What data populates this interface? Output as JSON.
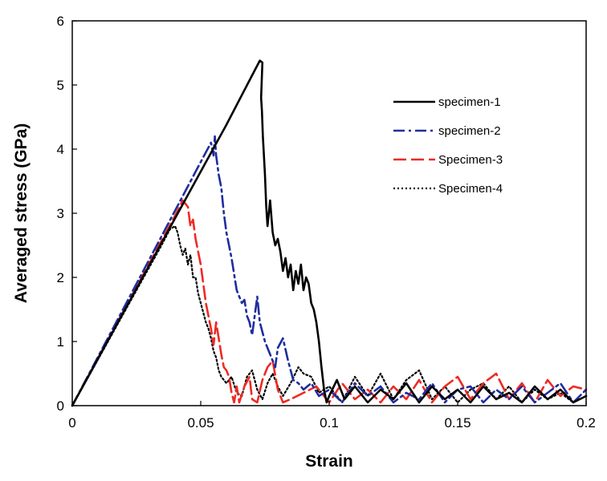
{
  "chart_data": {
    "type": "line",
    "title": "",
    "xlabel": "Strain",
    "ylabel": "Averaged stress (GPa)",
    "xlim": [
      0,
      0.2
    ],
    "ylim": [
      0,
      6
    ],
    "xticks": [
      0,
      0.05,
      0.1,
      0.15,
      0.2
    ],
    "xtick_labels": [
      "0",
      "0.05",
      "0.1",
      "0.15",
      "0.2"
    ],
    "yticks": [
      0,
      1,
      2,
      3,
      4,
      5,
      6
    ],
    "ytick_labels": [
      "0",
      "1",
      "2",
      "3",
      "4",
      "5",
      "6"
    ],
    "grid": false,
    "legend_position": "top-right",
    "series": [
      {
        "name": "specimen-1",
        "color": "#000000",
        "style": "solid",
        "x": [
          0,
          0.01,
          0.02,
          0.03,
          0.04,
          0.05,
          0.06,
          0.07,
          0.073,
          0.074,
          0.0735,
          0.0738,
          0.0742,
          0.075,
          0.0755,
          0.076,
          0.077,
          0.078,
          0.079,
          0.08,
          0.081,
          0.082,
          0.083,
          0.084,
          0.085,
          0.086,
          0.087,
          0.088,
          0.089,
          0.09,
          0.091,
          0.092,
          0.093,
          0.094,
          0.095,
          0.096,
          0.097,
          0.098,
          0.099,
          0.1,
          0.103,
          0.106,
          0.11,
          0.115,
          0.12,
          0.125,
          0.13,
          0.135,
          0.14,
          0.145,
          0.15,
          0.155,
          0.16,
          0.165,
          0.17,
          0.175,
          0.18,
          0.185,
          0.19,
          0.195,
          0.2
        ],
        "y": [
          0,
          0.73,
          1.46,
          2.19,
          2.92,
          3.65,
          4.38,
          5.15,
          5.38,
          5.35,
          4.8,
          4.6,
          4.2,
          3.6,
          3.1,
          2.8,
          3.2,
          2.7,
          2.5,
          2.6,
          2.4,
          2.1,
          2.3,
          2.0,
          2.2,
          1.8,
          2.1,
          1.9,
          2.2,
          1.8,
          2.0,
          1.9,
          1.6,
          1.5,
          1.3,
          1.0,
          0.6,
          0.25,
          0.05,
          0.15,
          0.4,
          0.1,
          0.3,
          0.05,
          0.25,
          0.1,
          0.35,
          0.05,
          0.3,
          0.1,
          0.25,
          0.05,
          0.3,
          0.1,
          0.2,
          0.05,
          0.3,
          0.1,
          0.25,
          0.05,
          0.15
        ]
      },
      {
        "name": "specimen-2",
        "color": "#1f2d9e",
        "style": "dashdot",
        "x": [
          0,
          0.01,
          0.02,
          0.03,
          0.04,
          0.05,
          0.054,
          0.055,
          0.0555,
          0.056,
          0.057,
          0.058,
          0.059,
          0.06,
          0.062,
          0.064,
          0.066,
          0.067,
          0.068,
          0.069,
          0.07,
          0.071,
          0.072,
          0.073,
          0.075,
          0.077,
          0.079,
          0.08,
          0.082,
          0.084,
          0.086,
          0.088,
          0.09,
          0.093,
          0.096,
          0.1,
          0.105,
          0.11,
          0.115,
          0.12,
          0.125,
          0.13,
          0.135,
          0.14,
          0.145,
          0.15,
          0.155,
          0.16,
          0.165,
          0.17,
          0.175,
          0.18,
          0.185,
          0.19,
          0.195,
          0.2
        ],
        "y": [
          0,
          0.76,
          1.52,
          2.28,
          3.04,
          3.8,
          4.1,
          3.9,
          4.2,
          3.9,
          3.6,
          3.4,
          3.0,
          2.7,
          2.3,
          1.8,
          1.6,
          1.65,
          1.4,
          1.3,
          1.1,
          1.4,
          1.7,
          1.3,
          1.0,
          0.8,
          0.6,
          0.9,
          1.05,
          0.7,
          0.4,
          0.35,
          0.25,
          0.35,
          0.15,
          0.25,
          0.05,
          0.35,
          0.15,
          0.3,
          0.05,
          0.2,
          0.1,
          0.35,
          0.05,
          0.25,
          0.3,
          0.05,
          0.25,
          0.1,
          0.3,
          0.05,
          0.2,
          0.35,
          0.05,
          0.25
        ]
      },
      {
        "name": "Specimen-3",
        "color": "#ee2a24",
        "style": "longdash",
        "x": [
          0,
          0.01,
          0.02,
          0.03,
          0.04,
          0.043,
          0.045,
          0.046,
          0.047,
          0.048,
          0.049,
          0.05,
          0.051,
          0.052,
          0.053,
          0.054,
          0.055,
          0.056,
          0.057,
          0.058,
          0.059,
          0.06,
          0.061,
          0.062,
          0.063,
          0.064,
          0.065,
          0.067,
          0.069,
          0.07,
          0.072,
          0.074,
          0.076,
          0.078,
          0.08,
          0.082,
          0.085,
          0.09,
          0.095,
          0.1,
          0.105,
          0.11,
          0.115,
          0.12,
          0.125,
          0.13,
          0.135,
          0.14,
          0.145,
          0.15,
          0.155,
          0.16,
          0.165,
          0.17,
          0.175,
          0.18,
          0.185,
          0.19,
          0.195,
          0.2
        ],
        "y": [
          0,
          0.74,
          1.48,
          2.22,
          2.96,
          3.2,
          3.1,
          2.8,
          2.9,
          2.6,
          2.4,
          2.2,
          1.9,
          1.6,
          1.4,
          1.2,
          0.95,
          1.3,
          1.05,
          0.8,
          0.6,
          0.55,
          0.45,
          0.2,
          0.05,
          0.3,
          0.05,
          0.3,
          0.45,
          0.1,
          0.05,
          0.4,
          0.6,
          0.7,
          0.25,
          0.05,
          0.1,
          0.2,
          0.3,
          0.05,
          0.35,
          0.1,
          0.25,
          0.05,
          0.3,
          0.1,
          0.4,
          0.05,
          0.3,
          0.45,
          0.1,
          0.35,
          0.5,
          0.1,
          0.35,
          0.05,
          0.4,
          0.15,
          0.3,
          0.25
        ]
      },
      {
        "name": "Specimen-4",
        "color": "#000000",
        "style": "dotted",
        "x": [
          0,
          0.01,
          0.02,
          0.03,
          0.035,
          0.038,
          0.04,
          0.041,
          0.042,
          0.043,
          0.044,
          0.045,
          0.046,
          0.047,
          0.048,
          0.049,
          0.05,
          0.051,
          0.052,
          0.053,
          0.054,
          0.055,
          0.056,
          0.057,
          0.058,
          0.06,
          0.062,
          0.064,
          0.066,
          0.068,
          0.07,
          0.072,
          0.074,
          0.076,
          0.078,
          0.08,
          0.082,
          0.085,
          0.088,
          0.09,
          0.093,
          0.096,
          0.1,
          0.105,
          0.11,
          0.115,
          0.12,
          0.125,
          0.13,
          0.135,
          0.14,
          0.145,
          0.15,
          0.155,
          0.16,
          0.165,
          0.17,
          0.175,
          0.18,
          0.185,
          0.19,
          0.195,
          0.2
        ],
        "y": [
          0,
          0.72,
          1.44,
          2.16,
          2.52,
          2.75,
          2.8,
          2.7,
          2.5,
          2.35,
          2.45,
          2.2,
          2.35,
          2.0,
          2.0,
          1.75,
          1.6,
          1.45,
          1.3,
          1.2,
          1.05,
          0.85,
          0.75,
          0.55,
          0.45,
          0.35,
          0.45,
          0.2,
          0.15,
          0.45,
          0.55,
          0.25,
          0.1,
          0.35,
          0.5,
          0.3,
          0.15,
          0.35,
          0.6,
          0.5,
          0.45,
          0.2,
          0.3,
          0.05,
          0.45,
          0.15,
          0.5,
          0.1,
          0.4,
          0.55,
          0.1,
          0.3,
          0.05,
          0.25,
          0.35,
          0.1,
          0.3,
          0.05,
          0.25,
          0.1,
          0.2,
          0.05,
          0.15
        ]
      }
    ]
  }
}
